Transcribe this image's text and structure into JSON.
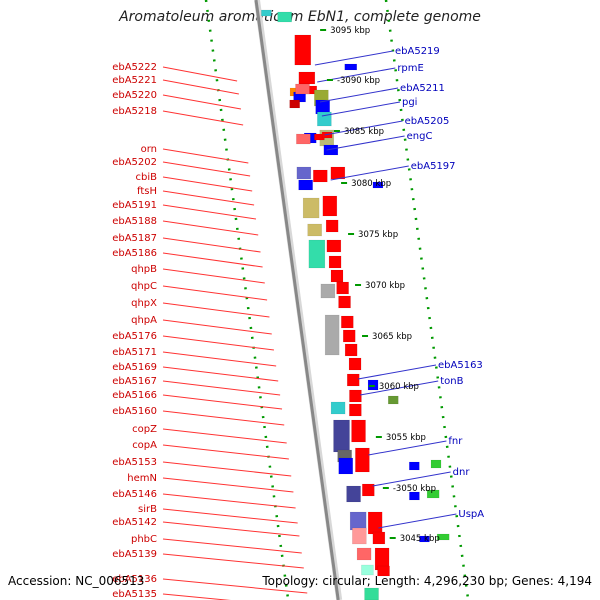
{
  "title": "Aromatoleum aromaticum EbN1, complete genome",
  "accession": "Accession: NC_006513",
  "summary": "Topology: circular; Length: 4,296,230 bp; Genes: 4,194",
  "colors": {
    "forward_gene": "#ff0000",
    "reverse_gene": "#0000ff",
    "left_label": "#cc0000",
    "right_label": "#0000bb",
    "dotted_track": "#009900",
    "backbone": "#888888"
  },
  "kbp_labels": [
    "3095 kbp",
    "-3090 kbp",
    "3085 kbp",
    "3080 kbp",
    "3075 kbp",
    "3070 kbp",
    "3065 kbp",
    "3060 kbp",
    "3055 kbp",
    "-3050 kbp",
    "3045 kbp"
  ],
  "left_labels": [
    "ebA5222",
    "ebA5221",
    "ebA5220",
    "ebA5218",
    "orn",
    "ebA5202",
    "cbiB",
    "ftsH",
    "ebA5191",
    "ebA5188",
    "ebA5187",
    "ebA5186",
    "qhpB",
    "qhpC",
    "qhpX",
    "qhpA",
    "ebA5176",
    "ebA5171",
    "ebA5169",
    "ebA5167",
    "ebA5166",
    "ebA5160",
    "copZ",
    "copA",
    "ebA5153",
    "hemN",
    "ebA5146",
    "sirB",
    "ebA5142",
    "phbC",
    "ebA5139",
    "ebA5136",
    "ebA5135"
  ],
  "right_labels": [
    "ebA5219",
    "rpmE",
    "ebA5211",
    "pgi",
    "ebA5205",
    "engC",
    "ebA5197",
    "ebA5163",
    "tonB",
    "fnr",
    "dnr",
    "UspA"
  ]
}
